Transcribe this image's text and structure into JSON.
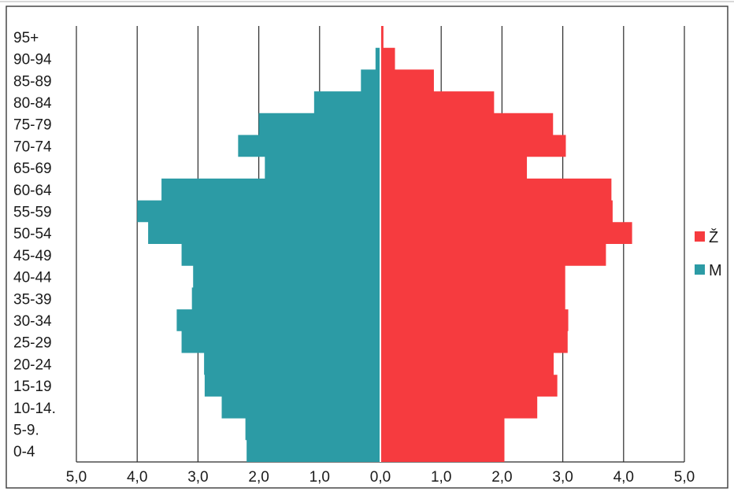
{
  "chart_data": {
    "type": "bar",
    "orientation": "horizontal-population-pyramid",
    "title": "",
    "xlabel": "",
    "ylabel": "",
    "xlim": [
      -5,
      5
    ],
    "x_ticks": [
      "5,0",
      "4,0",
      "3,0",
      "2,0",
      "1,0",
      "0,0",
      "1,0",
      "2,0",
      "3,0",
      "4,0",
      "5,0"
    ],
    "grid": true,
    "legend_position": "right",
    "categories": [
      "95+",
      "90-94",
      "85-89",
      "80-84",
      "75-79",
      "70-74",
      "65-69",
      "60-64",
      "55-59",
      "50-54",
      "45-49",
      "40-44",
      "35-39",
      "30-34",
      "25-29",
      "20-24",
      "15-19",
      "10-14.",
      "5-9.",
      "0-4"
    ],
    "series": [
      {
        "name": "Ž",
        "side": "right",
        "color": "#f63b3f",
        "values": [
          0.05,
          0.24,
          0.88,
          1.87,
          2.84,
          3.05,
          2.41,
          3.8,
          3.82,
          4.14,
          3.71,
          3.04,
          3.04,
          3.09,
          3.08,
          2.85,
          2.91,
          2.58,
          2.04,
          2.04
        ]
      },
      {
        "name": "M",
        "side": "left",
        "color": "#2c9ba5",
        "values": [
          0.01,
          0.08,
          0.32,
          1.09,
          2.0,
          2.34,
          1.9,
          3.6,
          4.0,
          3.82,
          3.27,
          3.08,
          3.1,
          3.35,
          3.27,
          2.9,
          2.89,
          2.61,
          2.22,
          2.2
        ]
      }
    ]
  }
}
